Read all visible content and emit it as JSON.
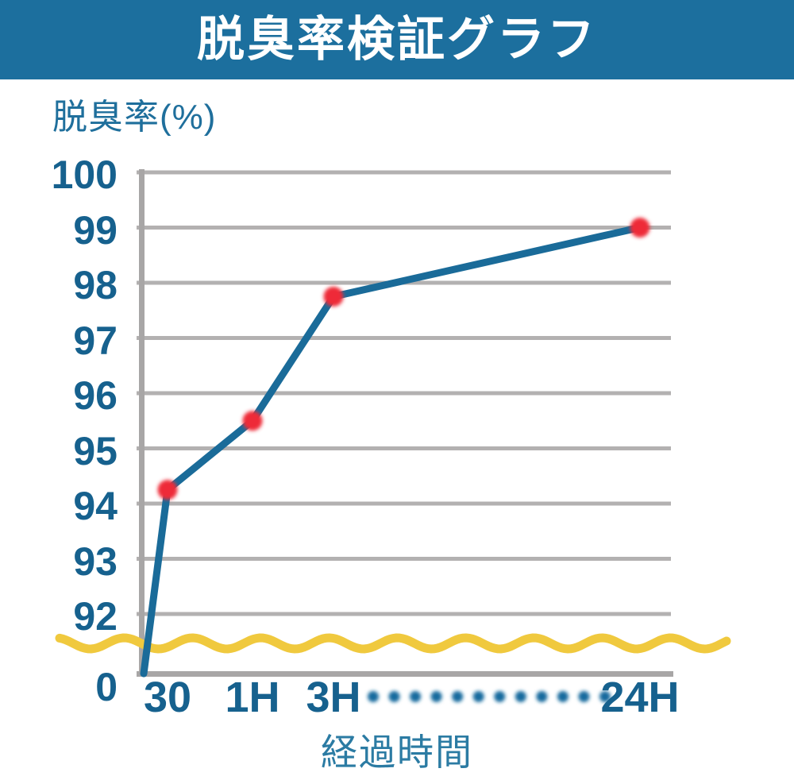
{
  "header": {
    "title": "脱臭率検証グラフ"
  },
  "chart_data": {
    "type": "line",
    "title": "脱臭率検証グラフ",
    "ylabel": "脱臭率(%)",
    "xlabel": "経過時間",
    "y_ticks": [
      "100",
      "99",
      "98",
      "97",
      "96",
      "95",
      "94",
      "93",
      "92",
      "0"
    ],
    "y_axis_break": "wavy line between 92 and 0",
    "x_ticks": [
      "30",
      "1H",
      "3H",
      "24H"
    ],
    "x_axis_ellipsis_dots": 12,
    "grid": "horizontal",
    "legend": "none",
    "ylim_display": [
      92,
      100
    ],
    "series": [
      {
        "name": "脱臭率",
        "x": [
          "30",
          "1H",
          "3H",
          "24H"
        ],
        "values": [
          94.25,
          95.5,
          97.75,
          99
        ],
        "line_starts_at_origin": true
      }
    ],
    "colors": {
      "banner": "#1c6f9e",
      "title_text": "#ffffff",
      "line": "#1a6b99",
      "marker": "#ee2b38",
      "grid": "#b3b1b1",
      "axis": "#a8a6a6",
      "break_wave": "#f0c93e",
      "tick_text": "#16618e",
      "ylabel_text": "#1f6f9c",
      "xlabel_text": "#2b7ba3",
      "ellipsis_dot": "#156a9e"
    }
  }
}
